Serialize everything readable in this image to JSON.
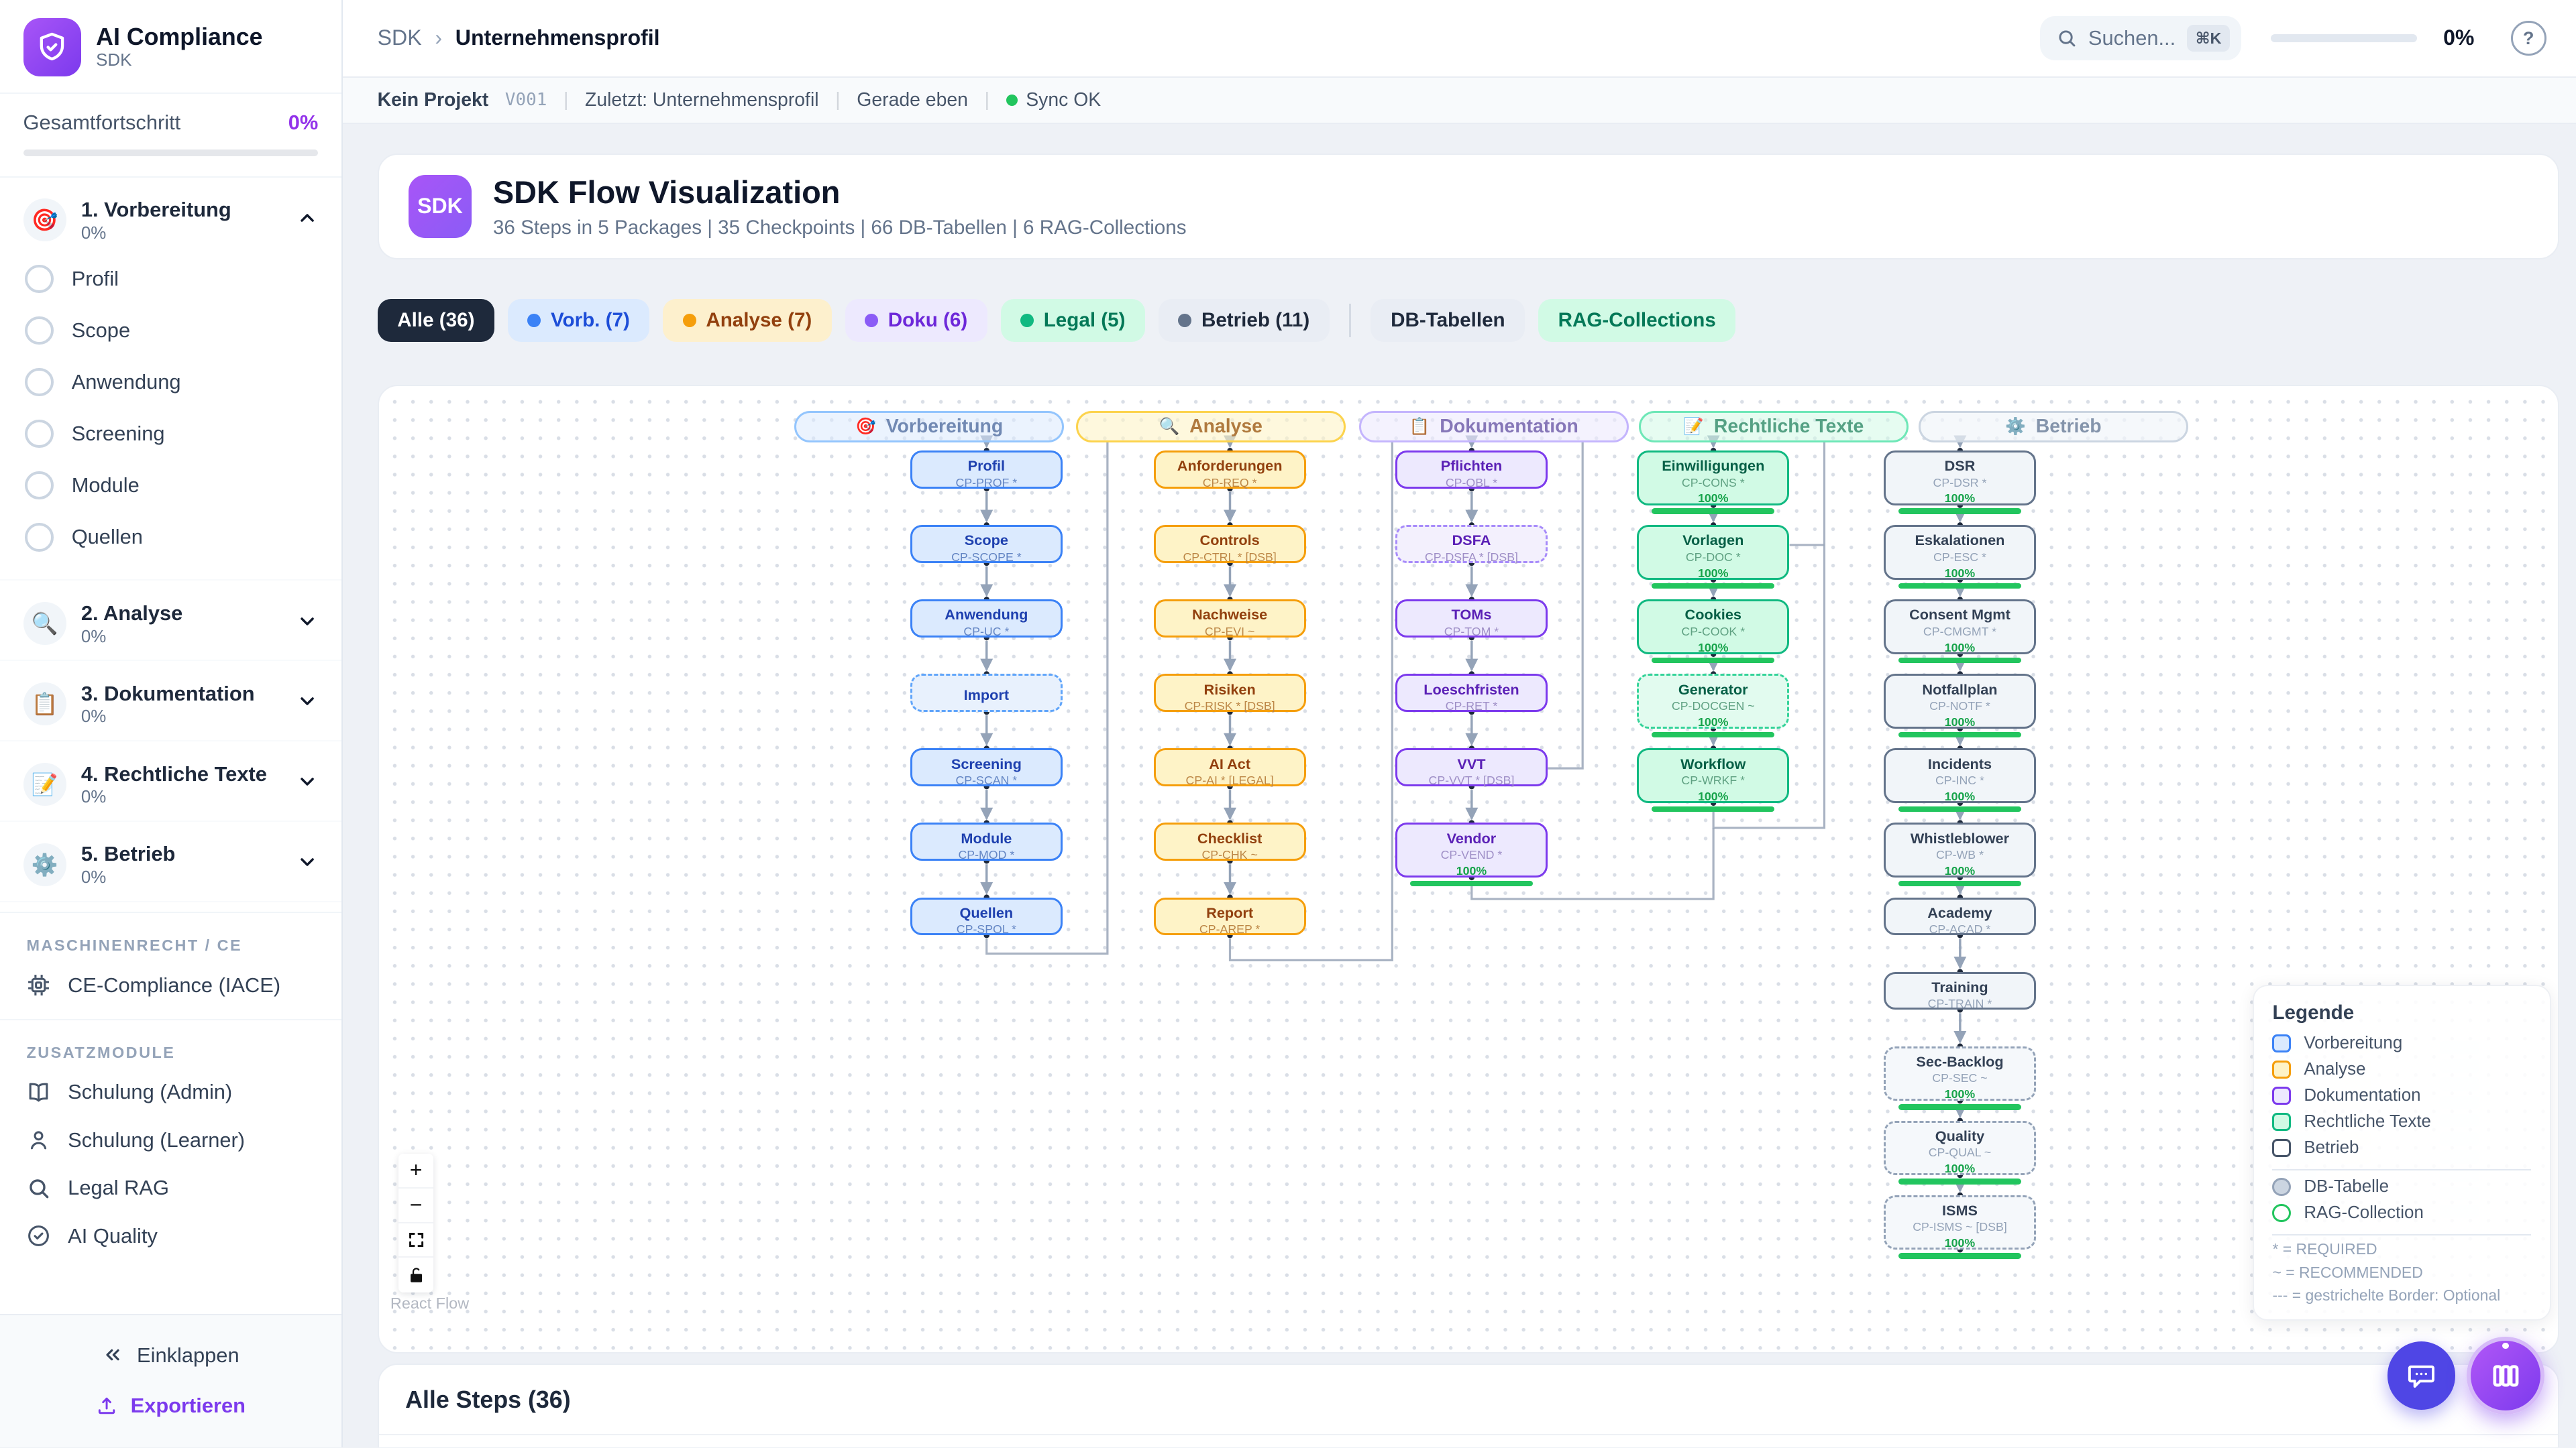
{
  "app": {
    "name": "AI Compliance",
    "subtitle": "SDK"
  },
  "sidebar": {
    "overall_label": "Gesamtfortschritt",
    "overall_value": "0%",
    "sections": [
      {
        "label": "1. Vorbereitung",
        "icon": "🎯",
        "progress": "0%",
        "expanded": true,
        "items": [
          "Profil",
          "Scope",
          "Anwendung",
          "Screening",
          "Module",
          "Quellen"
        ]
      },
      {
        "label": "2. Analyse",
        "icon": "🔍",
        "progress": "0%",
        "expanded": false,
        "items": []
      },
      {
        "label": "3. Dokumentation",
        "icon": "📋",
        "progress": "0%",
        "expanded": false,
        "items": []
      },
      {
        "label": "4. Rechtliche Texte",
        "icon": "📝",
        "progress": "0%",
        "expanded": false,
        "items": []
      },
      {
        "label": "5. Betrieb",
        "icon": "⚙️",
        "progress": "0%",
        "expanded": false,
        "items": []
      }
    ],
    "groups": [
      {
        "heading": "MASCHINENRECHT / CE",
        "items": [
          {
            "label": "CE-Compliance (IACE)",
            "icon": "chip-icon"
          }
        ]
      },
      {
        "heading": "ZUSATZMODULE",
        "items": [
          {
            "label": "Schulung (Admin)",
            "icon": "book-icon"
          },
          {
            "label": "Schulung (Learner)",
            "icon": "person-icon"
          },
          {
            "label": "Legal RAG",
            "icon": "search-icon"
          },
          {
            "label": "AI Quality",
            "icon": "check-circle-icon"
          }
        ]
      }
    ],
    "footer": {
      "collapse": "Einklappen",
      "export": "Exportieren"
    }
  },
  "topbar": {
    "breadcrumb_root": "SDK",
    "breadcrumb_sep": "›",
    "breadcrumb_page": "Unternehmensprofil",
    "search_placeholder": "Suchen...",
    "search_kbd": "⌘K",
    "progress": "0%",
    "help": "?"
  },
  "statusbar": {
    "project": "Kein Projekt",
    "version": "V001",
    "last": "Zuletzt: Unternehmensprofil",
    "time": "Gerade eben",
    "sync": "Sync OK"
  },
  "header_card": {
    "badge": "SDK",
    "title": "SDK Flow Visualization",
    "subtitle": "36 Steps in 5 Packages | 35 Checkpoints | 66 DB-Tabellen | 6 RAG-Collections"
  },
  "filters": [
    {
      "label": "Alle (36)",
      "bg": "#1e293b",
      "fg": "#ffffff"
    },
    {
      "label": "Vorb. (7)",
      "bg": "#dbeafe",
      "fg": "#1d4ed8",
      "dot": "#3b82f6"
    },
    {
      "label": "Analyse (7)",
      "bg": "#fdf0cd",
      "fg": "#92400e",
      "dot": "#f59e0b"
    },
    {
      "label": "Doku (6)",
      "bg": "#ede9fe",
      "fg": "#6d28d9",
      "dot": "#8b5cf6"
    },
    {
      "label": "Legal (5)",
      "bg": "#d1fae5",
      "fg": "#047857",
      "dot": "#10b981"
    },
    {
      "label": "Betrieb (11)",
      "bg": "#e9edf4",
      "fg": "#1e293b",
      "dot": "#64748b",
      "divider_after": true
    },
    {
      "label": "DB-Tabellen",
      "bg": "#e9edf4",
      "fg": "#1e293b"
    },
    {
      "label": "RAG-Collections",
      "bg": "#d1fae5",
      "fg": "#047857"
    }
  ],
  "flow": {
    "packages": [
      {
        "name": "Vorbereitung",
        "icon": "🎯",
        "color": "blue",
        "nodes": [
          {
            "t": "Profil",
            "c": "CP-PROF *"
          },
          {
            "t": "Scope",
            "c": "CP-SCOPE *"
          },
          {
            "t": "Anwendung",
            "c": "CP-UC *"
          },
          {
            "t": "Import",
            "c": "",
            "d": true
          },
          {
            "t": "Screening",
            "c": "CP-SCAN *"
          },
          {
            "t": "Module",
            "c": "CP-MOD *"
          },
          {
            "t": "Quellen",
            "c": "CP-SPOL *"
          }
        ]
      },
      {
        "name": "Analyse",
        "icon": "🔍",
        "color": "yellow",
        "nodes": [
          {
            "t": "Anforderungen",
            "c": "CP-REQ *"
          },
          {
            "t": "Controls",
            "c": "CP-CTRL * [DSB]"
          },
          {
            "t": "Nachweise",
            "c": "CP-EVI ~"
          },
          {
            "t": "Risiken",
            "c": "CP-RISK * [DSB]"
          },
          {
            "t": "AI Act",
            "c": "CP-AI * [LEGAL]"
          },
          {
            "t": "Checklist",
            "c": "CP-CHK ~"
          },
          {
            "t": "Report",
            "c": "CP-AREP *"
          }
        ]
      },
      {
        "name": "Dokumentation",
        "icon": "📋",
        "color": "purple",
        "nodes": [
          {
            "t": "Pflichten",
            "c": "CP-OBL *"
          },
          {
            "t": "DSFA",
            "c": "CP-DSFA * [DSB]",
            "d": true
          },
          {
            "t": "TOMs",
            "c": "CP-TOM *"
          },
          {
            "t": "Loeschfristen",
            "c": "CP-RET *"
          },
          {
            "t": "VVT",
            "c": "CP-VVT * [DSB]"
          },
          {
            "t": "Vendor",
            "c": "CP-VEND *",
            "p": "100%"
          }
        ]
      },
      {
        "name": "Rechtliche Texte",
        "icon": "📝",
        "color": "green",
        "nodes": [
          {
            "t": "Einwilligungen",
            "c": "CP-CONS *",
            "p": "100%"
          },
          {
            "t": "Vorlagen",
            "c": "CP-DOC *",
            "p": "100%"
          },
          {
            "t": "Cookies",
            "c": "CP-COOK *",
            "p": "100%"
          },
          {
            "t": "Generator",
            "c": "CP-DOCGEN ~",
            "p": "100%",
            "d": true
          },
          {
            "t": "Workflow",
            "c": "CP-WRKF *",
            "p": "100%"
          }
        ]
      },
      {
        "name": "Betrieb",
        "icon": "⚙️",
        "color": "slate",
        "nodes": [
          {
            "t": "DSR",
            "c": "CP-DSR *",
            "p": "100%"
          },
          {
            "t": "Eskalationen",
            "c": "CP-ESC *",
            "p": "100%"
          },
          {
            "t": "Consent Mgmt",
            "c": "CP-CMGMT *",
            "p": "100%"
          },
          {
            "t": "Notfallplan",
            "c": "CP-NOTF *",
            "p": "100%"
          },
          {
            "t": "Incidents",
            "c": "CP-INC *",
            "p": "100%"
          },
          {
            "t": "Whistleblower",
            "c": "CP-WB *",
            "p": "100%"
          },
          {
            "t": "Academy",
            "c": "CP-ACAD *"
          },
          {
            "t": "Training",
            "c": "CP-TRAIN *"
          },
          {
            "t": "Sec-Backlog",
            "c": "CP-SEC ~",
            "p": "100%",
            "d": true
          },
          {
            "t": "Quality",
            "c": "CP-QUAL ~",
            "p": "100%",
            "d": true
          },
          {
            "t": "ISMS",
            "c": "CP-ISMS ~ [DSB]",
            "p": "100%",
            "d": true
          }
        ]
      }
    ]
  },
  "legend": {
    "title": "Legende",
    "packages": [
      {
        "label": "Vorbereitung",
        "key": "blue"
      },
      {
        "label": "Analyse",
        "key": "yellow"
      },
      {
        "label": "Dokumentation",
        "key": "purple"
      },
      {
        "label": "Rechtliche Texte",
        "key": "green"
      },
      {
        "label": "Betrieb",
        "key": "slate"
      }
    ],
    "types": [
      {
        "label": "DB-Tabelle",
        "fill": "#cbd5e1",
        "border": "#94a3b8"
      },
      {
        "label": "RAG-Collection",
        "fill": "#ffffff",
        "border": "#22c55e"
      }
    ],
    "notes": [
      "* = REQUIRED",
      "~ = RECOMMENDED",
      "--- = gestrichelte Border: Optional"
    ]
  },
  "canvas_controls": {
    "zoom_in": "+",
    "zoom_out": "−",
    "attribution": "React Flow"
  },
  "bottom_card": {
    "title": "Alle Steps (36)"
  },
  "colors": {
    "accent": "#7c3aed",
    "progress_green": "#22c55e",
    "edge": "#94a3b8",
    "packages": {
      "blue": {
        "bg": "#dbeafe",
        "bgd": "#e8f1fd",
        "border": "#3b82f6",
        "dash": "#60a5fa",
        "title": "#1e40af",
        "code": "#6486c4",
        "hbg": "rgba(219,234,254,0.55)",
        "hbd": "#93c5fd",
        "htx": "#7189b3"
      },
      "yellow": {
        "bg": "#fef3c7",
        "bgd": "#fdf6dd",
        "border": "#f59e0b",
        "dash": "#fbbf24",
        "title": "#92400e",
        "code": "#bd8747",
        "hbg": "rgba(254,243,199,0.6)",
        "hbd": "#fcd34d",
        "htx": "#b07a3e"
      },
      "purple": {
        "bg": "#ede9fe",
        "bgd": "#f3f0fd",
        "border": "#7c3aed",
        "dash": "#a78bfa",
        "title": "#5b21b6",
        "code": "#9f8fc7",
        "hbg": "rgba(237,233,254,0.6)",
        "hbd": "#c4b5fd",
        "htx": "#8677b8"
      },
      "green": {
        "bg": "#d1fae5",
        "bgd": "#e2fbef",
        "border": "#10b981",
        "dash": "#34d399",
        "title": "#065f46",
        "code": "#5fa182",
        "hbg": "rgba(209,250,229,0.55)",
        "hbd": "#6ee7b7",
        "htx": "#55a184"
      },
      "slate": {
        "bg": "#f1f5f9",
        "bgd": "#f5f8fb",
        "border": "#64748b",
        "dash": "#94a3b8",
        "title": "#334155",
        "code": "#94a3b8",
        "hbg": "rgba(241,245,249,0.7)",
        "hbd": "#cbd5e1",
        "htx": "#8494ab"
      }
    }
  }
}
